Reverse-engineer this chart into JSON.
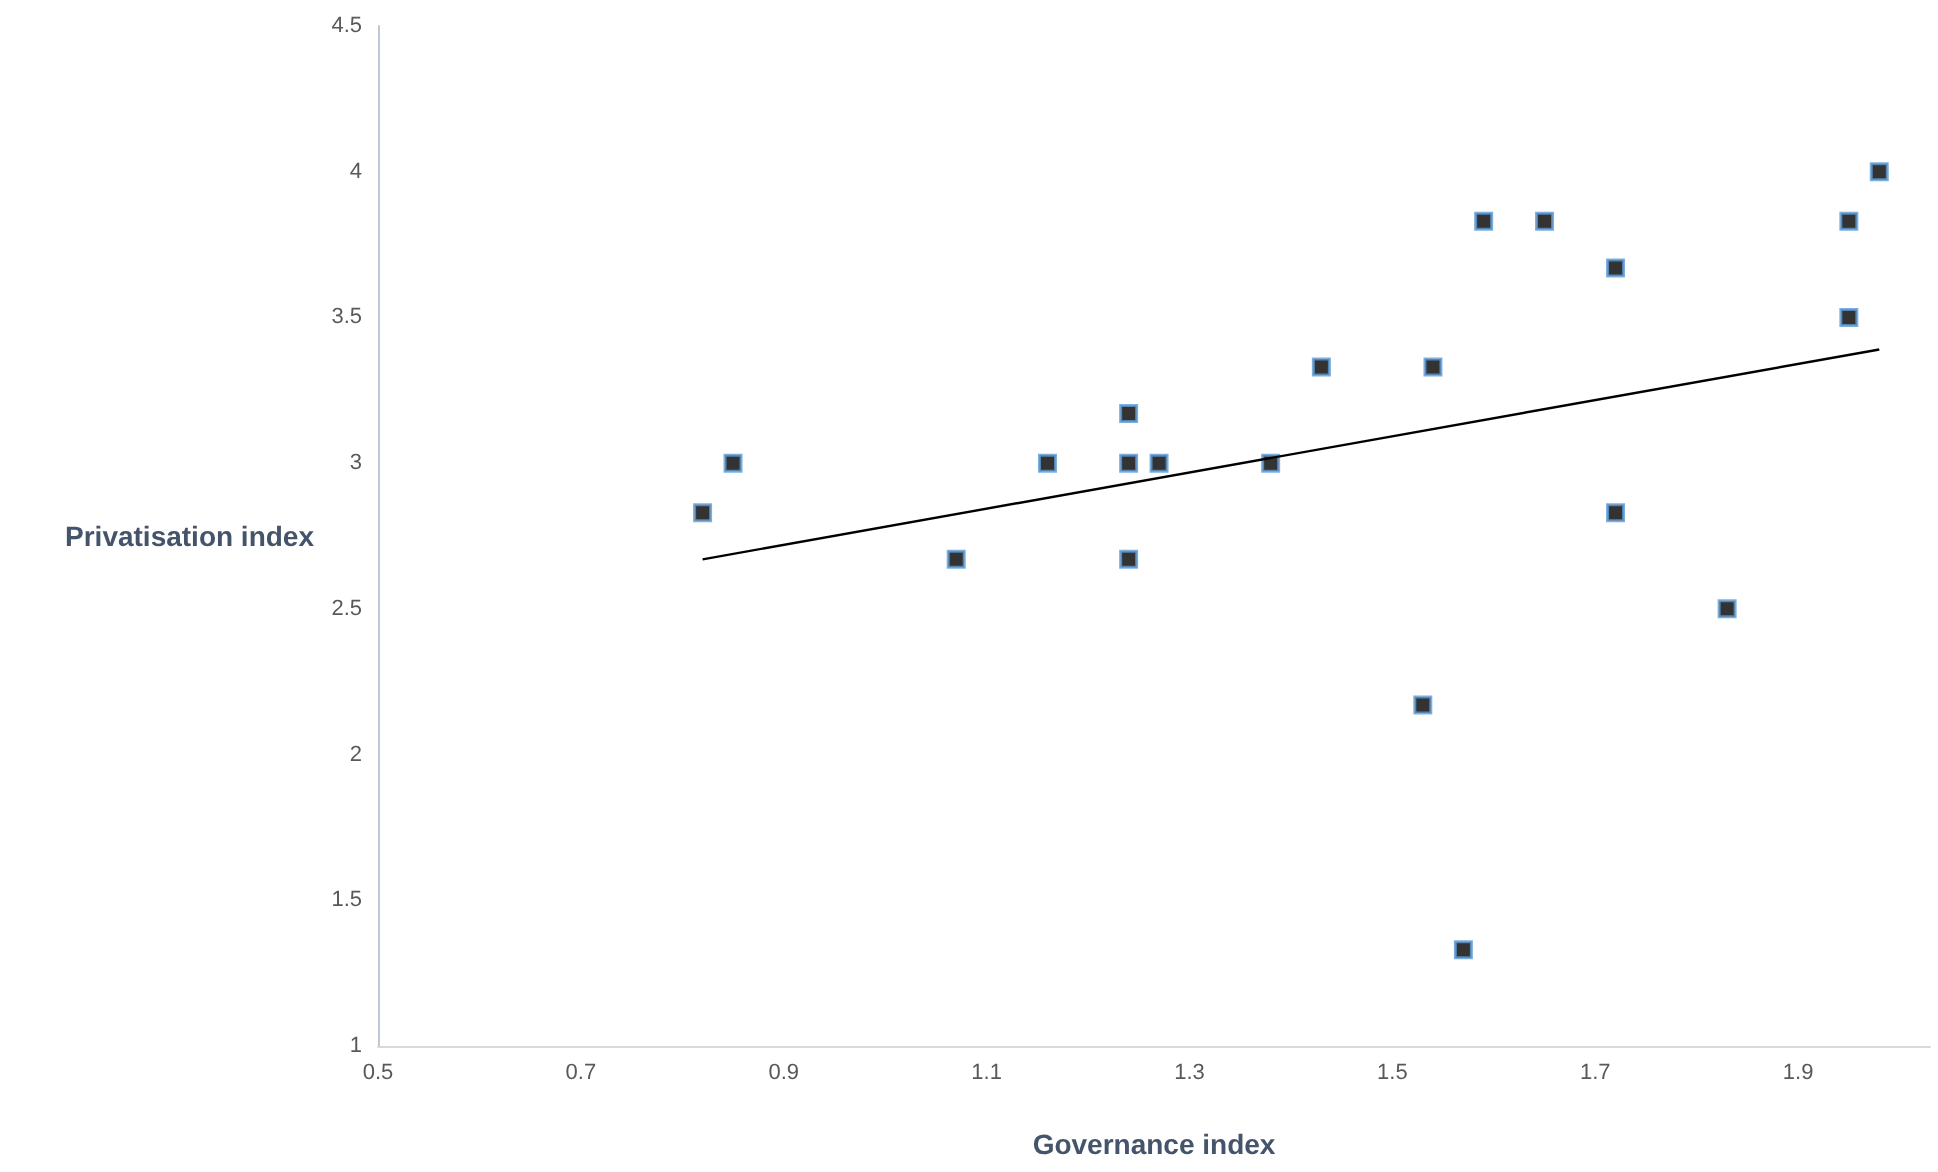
{
  "chart_data": {
    "type": "scatter",
    "xlabel": "Governance index",
    "ylabel": "Privatisation index",
    "xlim": [
      0.5,
      2.03
    ],
    "xticks": [
      0.5,
      0.7,
      0.9,
      1.1,
      1.3,
      1.5,
      1.7,
      1.9
    ],
    "ylim": [
      1,
      4.5
    ],
    "yticks": [
      1,
      1.5,
      2,
      2.5,
      3,
      3.5,
      4,
      4.5
    ],
    "grid": false,
    "marker": "square",
    "series": [
      {
        "color": "#000000",
        "x": [
          0.82,
          0.85,
          1.07,
          1.16,
          1.24,
          1.24,
          1.24,
          1.27,
          1.38,
          1.43,
          1.54,
          1.59,
          1.65,
          1.72,
          1.72,
          1.95,
          1.95,
          1.98,
          1.53,
          1.57,
          1.83
        ],
        "values": [
          2.83,
          3,
          2.67,
          3,
          3.17,
          3,
          2.67,
          3,
          3,
          3.33,
          3.33,
          3.83,
          3.83,
          3.67,
          2.83,
          3.83,
          3.5,
          4,
          2.17,
          1.33,
          2.5
        ]
      },
      {
        "type": "line",
        "color": "#000000",
        "marker": "none",
        "x": [
          0.82,
          1.98
        ],
        "values": [
          2.67,
          3.39
        ]
      }
    ]
  }
}
